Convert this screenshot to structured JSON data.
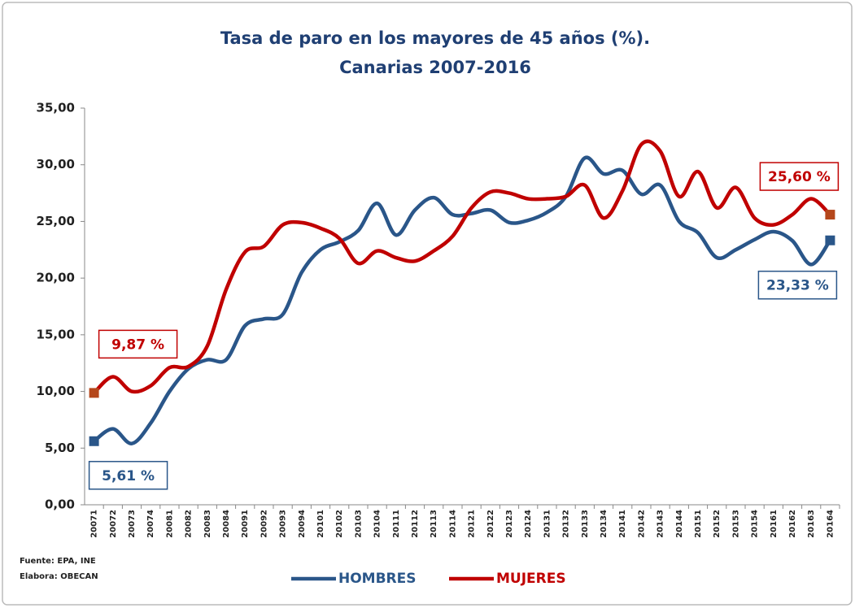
{
  "chart_data": {
    "type": "line",
    "title": "Tasa de paro en los mayores de 45 años (%).",
    "subtitle": "Canarias 2007-2016",
    "categories": [
      "20071",
      "20072",
      "20073",
      "20074",
      "20081",
      "20082",
      "20083",
      "20084",
      "20091",
      "20092",
      "20093",
      "20094",
      "20101",
      "20102",
      "20103",
      "20104",
      "20111",
      "20112",
      "20113",
      "20114",
      "20121",
      "20122",
      "20123",
      "20124",
      "20131",
      "20132",
      "20133",
      "20134",
      "20141",
      "20142",
      "20143",
      "20144",
      "20151",
      "20152",
      "20153",
      "20154",
      "20161",
      "20162",
      "20163",
      "20164"
    ],
    "series": [
      {
        "name": "HOMBRES",
        "color": "#2a5689",
        "marker_color": "#2a5689",
        "values": [
          5.61,
          6.7,
          5.4,
          7.2,
          10,
          12,
          12.8,
          12.8,
          15.8,
          16.4,
          16.8,
          20.5,
          22.5,
          23.2,
          24.2,
          26.6,
          23.8,
          26,
          27.1,
          25.6,
          25.7,
          26,
          24.9,
          25.1,
          25.8,
          27.2,
          30.6,
          29.2,
          29.5,
          27.4,
          28.2,
          25,
          24,
          21.8,
          22.5,
          23.4,
          24.1,
          23.3,
          21.2,
          23.33
        ],
        "value_labels": [
          "5,61 %",
          null,
          null,
          null,
          null,
          null,
          null,
          null,
          null,
          null,
          null,
          null,
          null,
          null,
          null,
          null,
          null,
          null,
          null,
          null,
          null,
          null,
          null,
          null,
          null,
          null,
          null,
          null,
          null,
          null,
          null,
          null,
          null,
          null,
          null,
          null,
          null,
          null,
          null,
          "23,33 %"
        ]
      },
      {
        "name": "MUJERES",
        "color": "#c00000",
        "marker_color": "#b5471b",
        "values": [
          9.87,
          11.3,
          10,
          10.5,
          12.1,
          12.2,
          14,
          19,
          22.3,
          22.8,
          24.7,
          24.9,
          24.4,
          23.5,
          21.3,
          22.4,
          21.8,
          21.5,
          22.4,
          23.7,
          26.2,
          27.6,
          27.5,
          27,
          27,
          27.2,
          28.2,
          25.3,
          27.7,
          31.8,
          31.2,
          27.2,
          29.4,
          26.2,
          28,
          25.3,
          24.7,
          25.6,
          27,
          25.6
        ],
        "value_labels": [
          "9,87 %",
          null,
          null,
          null,
          null,
          null,
          null,
          null,
          null,
          null,
          null,
          null,
          null,
          null,
          null,
          null,
          null,
          null,
          null,
          null,
          null,
          null,
          null,
          null,
          null,
          null,
          null,
          null,
          null,
          null,
          null,
          null,
          null,
          null,
          null,
          null,
          null,
          null,
          null,
          "25,60 %"
        ]
      }
    ],
    "ylim": [
      0,
      35
    ],
    "yticks": [
      {
        "value": 0,
        "label": "0,00"
      },
      {
        "value": 5,
        "label": "5,00"
      },
      {
        "value": 10,
        "label": "10,00"
      },
      {
        "value": 15,
        "label": "15,00"
      },
      {
        "value": 20,
        "label": "20,00"
      },
      {
        "value": 25,
        "label": "25,00"
      },
      {
        "value": 30,
        "label": "30,00"
      },
      {
        "value": 35,
        "label": "35,00"
      }
    ],
    "grid": false,
    "legend": "bottom",
    "source": "Fuente: EPA, INE",
    "credit": "Elabora: OBECAN"
  }
}
